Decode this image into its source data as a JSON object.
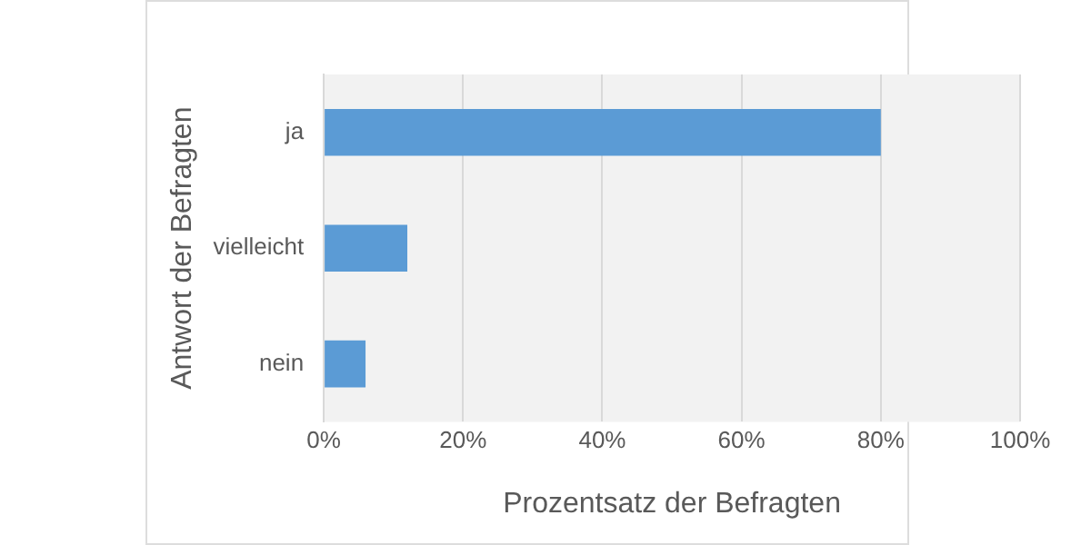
{
  "chart_data": {
    "type": "bar",
    "orientation": "horizontal",
    "xlabel": "Prozentsatz der Befragten",
    "ylabel": "Antwort der Befragten",
    "categories": [
      "ja",
      "vielleicht",
      "nein"
    ],
    "values": [
      80,
      12,
      6
    ],
    "color": "#5b9bd5",
    "xlim": [
      0,
      100
    ],
    "xticks": [
      {
        "value": 0,
        "label": "0%"
      },
      {
        "value": 20,
        "label": "20%"
      },
      {
        "value": 40,
        "label": "40%"
      },
      {
        "value": 60,
        "label": "60%"
      },
      {
        "value": 80,
        "label": "80%"
      },
      {
        "value": 100,
        "label": "100%"
      }
    ],
    "grid": "x",
    "legend": false
  }
}
